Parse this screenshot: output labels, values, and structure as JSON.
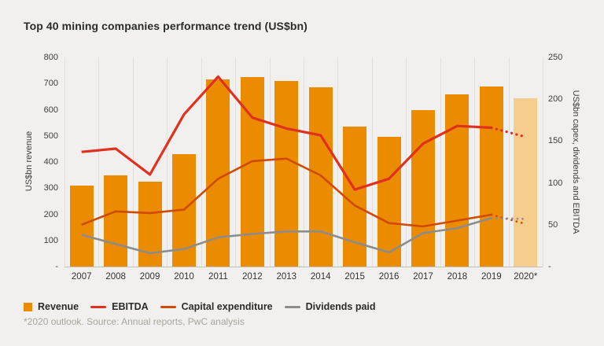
{
  "title": "Top 40 mining companies performance trend (US$bn)",
  "footnote": "*2020 outlook. Source: Annual reports, PwC analysis",
  "left_axis": {
    "label": "US$bn revenue",
    "ticks": [
      "800",
      "700",
      "600",
      "500",
      "400",
      "300",
      "200",
      "100",
      "-"
    ],
    "max": 800
  },
  "right_axis": {
    "label": "US$bn capex, dividends and EBITDA",
    "ticks": [
      "250",
      "200",
      "150",
      "100",
      "50",
      "-"
    ],
    "max": 250
  },
  "legend": [
    {
      "label": "Revenue",
      "marker": "square",
      "color": "#EB8C00"
    },
    {
      "label": "EBITDA",
      "marker": "line",
      "color": "#E0301E"
    },
    {
      "label": "Capital expenditure",
      "marker": "line",
      "color": "#D04A02"
    },
    {
      "label": "Dividends paid",
      "marker": "line",
      "color": "#8C8C8C"
    }
  ],
  "colors": {
    "background": "#F1F0EE",
    "revenue": "#EB8C00",
    "revenue_forecast": "#F7CD8E",
    "ebitda": "#E0301E",
    "capex": "#D04A02",
    "dividends": "#8C8C8C",
    "grid": "#E0DFDC",
    "axis_text": "#3C3C3C",
    "footnote_text": "#A9A49C"
  },
  "chart_data": {
    "type": "bar+line combo, dual axis",
    "title": "Top 40 mining companies performance trend (US$bn)",
    "categories": [
      "2007",
      "2008",
      "2009",
      "2010",
      "2011",
      "2012",
      "2013",
      "2014",
      "2015",
      "2016",
      "2017",
      "2018",
      "2019",
      "2020*"
    ],
    "left_ylim": [
      0,
      800
    ],
    "right_ylim": [
      0,
      250
    ],
    "grid": "vertical",
    "legend_position": "bottom",
    "forecast_category": "2020*",
    "series": [
      {
        "name": "Revenue",
        "type": "bar",
        "axis": "left",
        "color": "#EB8C00",
        "values": [
          310,
          350,
          325,
          430,
          715,
          725,
          710,
          685,
          535,
          495,
          600,
          660,
          690,
          645
        ],
        "last_bar_lighter_forecast": true,
        "forecast_color": "#F7CD8E"
      },
      {
        "name": "EBITDA",
        "type": "line",
        "axis": "right",
        "color": "#E0301E",
        "stroke_width": 3.2,
        "values": [
          137,
          141,
          110,
          182,
          227,
          178,
          165,
          157,
          92,
          105,
          147,
          168,
          166,
          155
        ],
        "dotted_last_segment": true
      },
      {
        "name": "Capital expenditure",
        "type": "line",
        "axis": "right",
        "color": "#D04A02",
        "stroke_width": 2.6,
        "values": [
          50,
          66,
          64,
          68,
          105,
          126,
          129,
          109,
          73,
          52,
          48,
          55,
          62,
          51
        ],
        "dotted_last_segment": true
      },
      {
        "name": "Dividends paid",
        "type": "line",
        "axis": "right",
        "color": "#8C8C8C",
        "stroke_width": 2.6,
        "values": [
          38,
          27,
          16,
          21,
          35,
          39,
          42,
          42,
          29,
          17,
          40,
          46,
          58,
          57
        ],
        "dotted_last_segment": true
      }
    ]
  }
}
